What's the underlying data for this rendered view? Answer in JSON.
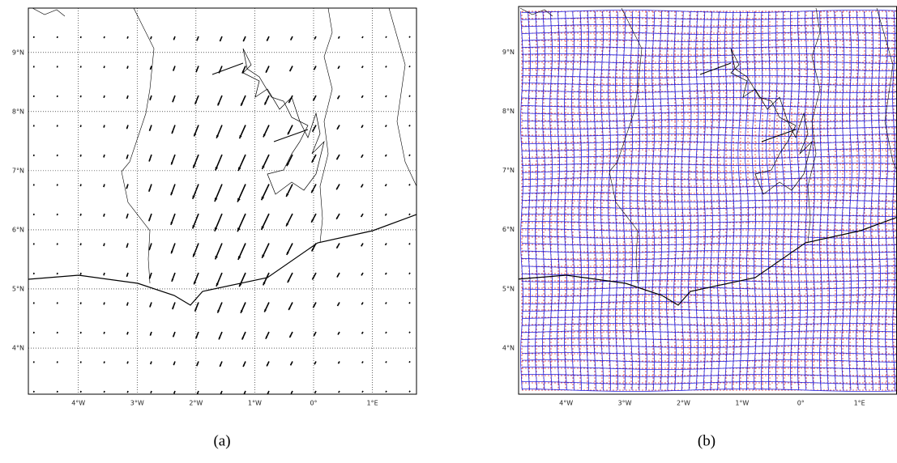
{
  "panels": [
    {
      "label": "(a)",
      "xlim": [
        -4.85,
        1.75
      ],
      "ylim": [
        3.22,
        9.75
      ],
      "xticks": [
        {
          "value": -4,
          "label": "4°W"
        },
        {
          "value": -3,
          "label": "3°W"
        },
        {
          "value": -2,
          "label": "2°W"
        },
        {
          "value": -1,
          "label": "1°W"
        },
        {
          "value": 0,
          "label": "0°"
        },
        {
          "value": 1,
          "label": "1°E"
        }
      ],
      "yticks": [
        {
          "value": 4,
          "label": "4°N"
        },
        {
          "value": 5,
          "label": "5°N"
        },
        {
          "value": 6,
          "label": "6°N"
        },
        {
          "value": 7,
          "label": "7°N"
        },
        {
          "value": 8,
          "label": "8°N"
        },
        {
          "value": 9,
          "label": "9°N"
        }
      ]
    },
    {
      "label": "(b)",
      "xlim": [
        -4.81,
        1.64
      ],
      "ylim": [
        3.22,
        9.77
      ],
      "xticks": [
        {
          "value": -4,
          "label": "4°W"
        },
        {
          "value": -3,
          "label": "3°W"
        },
        {
          "value": -2,
          "label": "2°W"
        },
        {
          "value": -1,
          "label": "1°W"
        },
        {
          "value": 0,
          "label": "0°"
        },
        {
          "value": 1,
          "label": "1°E"
        }
      ],
      "yticks": [
        {
          "value": 4,
          "label": "4°N"
        },
        {
          "value": 5,
          "label": "5°N"
        },
        {
          "value": 6,
          "label": "6°N"
        },
        {
          "value": 7,
          "label": "7°N"
        },
        {
          "value": 8,
          "label": "8°N"
        },
        {
          "value": 9,
          "label": "9°N"
        }
      ]
    }
  ]
}
